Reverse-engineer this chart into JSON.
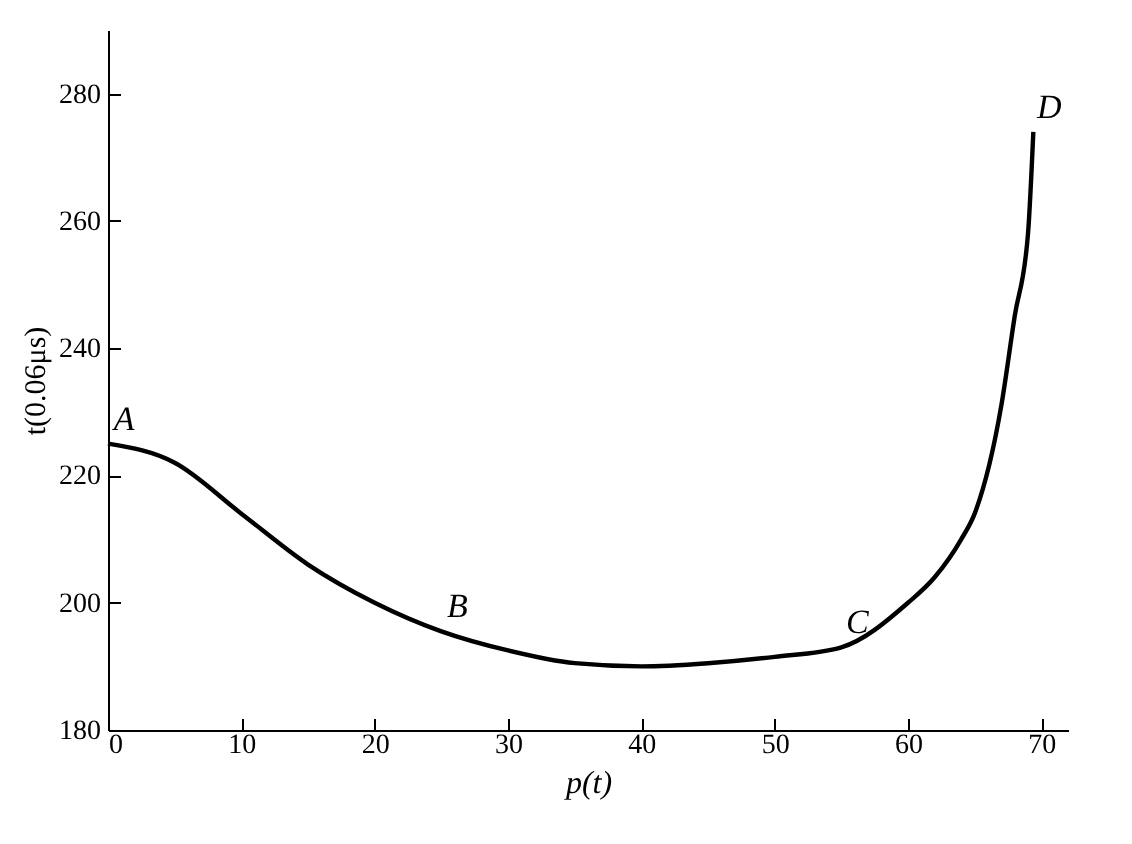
{
  "chart_data": {
    "type": "line",
    "xlabel": "p(t)",
    "ylabel": "t(0.06μs)",
    "x": [
      0,
      5,
      10,
      15,
      20,
      25,
      30,
      35,
      40,
      45,
      50,
      55,
      60,
      62,
      64,
      65,
      67,
      68,
      69,
      69.4
    ],
    "series": [
      {
        "color": "#000000",
        "values": [
          225,
          222,
          214,
          206,
          200,
          195.5,
          192.5,
          190.5,
          190,
          190.5,
          191.5,
          193,
          200,
          204,
          210,
          214,
          231,
          245,
          258,
          274
        ]
      }
    ],
    "xlim": [
      0,
      72
    ],
    "xticks": [
      0,
      10,
      20,
      30,
      40,
      50,
      60,
      70
    ],
    "ylim": [
      180,
      290
    ],
    "yticks": [
      180,
      200,
      220,
      240,
      260,
      280
    ],
    "grid": false,
    "marker": "none",
    "line_style": "solid",
    "annotations": [
      {
        "text": "A",
        "x": 0,
        "y": 225
      },
      {
        "text": "B",
        "x": 25,
        "y": 195.5
      },
      {
        "text": "C",
        "x": 55,
        "y": 193
      },
      {
        "text": "D",
        "x": 69.4,
        "y": 274
      }
    ]
  }
}
